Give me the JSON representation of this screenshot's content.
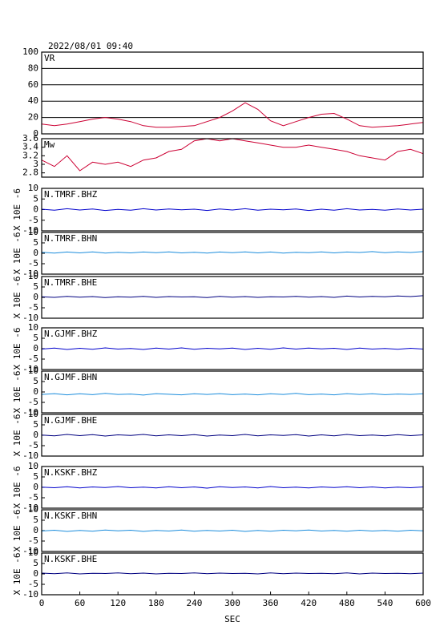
{
  "chart_data": [
    {
      "type": "line",
      "title": "2022/08/01 09:40",
      "ylim": [
        0,
        100
      ],
      "yticks": [
        0,
        20,
        40,
        60,
        80,
        100
      ],
      "grid": true,
      "x": [
        0,
        20,
        40,
        60,
        80,
        100,
        120,
        140,
        160,
        180,
        200,
        220,
        240,
        260,
        280,
        300,
        320,
        340,
        360,
        380,
        400,
        420,
        440,
        460,
        480,
        500,
        520,
        540,
        560,
        580,
        600
      ],
      "series": [
        {
          "name": "VR",
          "color": "#cc0033",
          "values": [
            12,
            10,
            12,
            15,
            18,
            20,
            18,
            15,
            10,
            8,
            8,
            9,
            10,
            15,
            20,
            28,
            38,
            30,
            16,
            10,
            15,
            20,
            24,
            25,
            18,
            10,
            8,
            9,
            10,
            12,
            14
          ]
        }
      ]
    },
    {
      "type": "line",
      "ylim": [
        2.7,
        3.6
      ],
      "yticks": [
        2.8,
        3,
        3.2,
        3.4,
        3.6
      ],
      "x": [
        0,
        20,
        40,
        60,
        80,
        100,
        120,
        140,
        160,
        180,
        200,
        220,
        240,
        260,
        280,
        300,
        320,
        340,
        360,
        380,
        400,
        420,
        440,
        460,
        480,
        500,
        520,
        540,
        560,
        580,
        600
      ],
      "series": [
        {
          "name": "Mw",
          "color": "#cc0033",
          "values": [
            3.1,
            2.95,
            3.2,
            2.85,
            3.05,
            3.0,
            3.05,
            2.95,
            3.1,
            3.15,
            3.3,
            3.35,
            3.55,
            3.6,
            3.55,
            3.6,
            3.55,
            3.5,
            3.45,
            3.4,
            3.4,
            3.45,
            3.4,
            3.35,
            3.3,
            3.2,
            3.15,
            3.1,
            3.3,
            3.35,
            3.25
          ]
        }
      ]
    },
    {
      "type": "line",
      "ylim": [
        -10,
        10
      ],
      "yticks": [
        -10,
        -5,
        0,
        5,
        10
      ],
      "ylabel": "X 10E -6",
      "x": [
        0,
        20,
        40,
        60,
        80,
        100,
        120,
        140,
        160,
        180,
        200,
        220,
        240,
        260,
        280,
        300,
        320,
        340,
        360,
        380,
        400,
        420,
        440,
        460,
        480,
        500,
        520,
        540,
        560,
        580,
        600
      ],
      "series": [
        {
          "name": "N.TMRF.BHZ",
          "color": "#0000cc",
          "values": [
            0.2,
            -0.3,
            0.4,
            -0.2,
            0.3,
            -0.4,
            0.1,
            -0.3,
            0.4,
            -0.2,
            0.3,
            -0.1,
            0.2,
            -0.4,
            0.3,
            -0.2,
            0.4,
            -0.3,
            0.2,
            -0.1,
            0.3,
            -0.4,
            0.2,
            -0.3,
            0.4,
            -0.2,
            0.1,
            -0.3,
            0.3,
            -0.2,
            0.2
          ]
        }
      ]
    },
    {
      "type": "line",
      "ylim": [
        -10,
        10
      ],
      "yticks": [
        -10,
        -5,
        0,
        5,
        10
      ],
      "ylabel": "X 10E -6",
      "x": [
        0,
        20,
        40,
        60,
        80,
        100,
        120,
        140,
        160,
        180,
        200,
        220,
        240,
        260,
        280,
        300,
        320,
        340,
        360,
        380,
        400,
        420,
        440,
        460,
        480,
        500,
        520,
        540,
        560,
        580,
        600
      ],
      "series": [
        {
          "name": "N.TMRF.BHN",
          "color": "#1a8cdc",
          "values": [
            0.5,
            0.1,
            0.6,
            0.2,
            0.7,
            0.1,
            0.5,
            0.2,
            0.6,
            0.3,
            0.7,
            0.2,
            0.5,
            0.1,
            0.6,
            0.3,
            0.7,
            0.2,
            0.6,
            0.1,
            0.5,
            0.3,
            0.7,
            0.2,
            0.6,
            0.4,
            0.8,
            0.3,
            0.7,
            0.4,
            0.8
          ]
        }
      ]
    },
    {
      "type": "line",
      "ylim": [
        -10,
        10
      ],
      "yticks": [
        -10,
        -5,
        0,
        5,
        10
      ],
      "ylabel": "X 10E -6",
      "x": [
        0,
        20,
        40,
        60,
        80,
        100,
        120,
        140,
        160,
        180,
        200,
        220,
        240,
        260,
        280,
        300,
        320,
        340,
        360,
        380,
        400,
        420,
        440,
        460,
        480,
        500,
        520,
        540,
        560,
        580,
        600
      ],
      "series": [
        {
          "name": "N.TMRF.BHE",
          "color": "#000080",
          "values": [
            0.3,
            0.0,
            0.5,
            0.1,
            0.4,
            -0.1,
            0.3,
            0.1,
            0.5,
            0.0,
            0.4,
            0.2,
            0.3,
            -0.1,
            0.5,
            0.1,
            0.4,
            0.0,
            0.3,
            0.2,
            0.5,
            0.1,
            0.4,
            0.0,
            0.6,
            0.2,
            0.5,
            0.3,
            0.7,
            0.4,
            0.8
          ]
        }
      ]
    },
    {
      "type": "line",
      "ylim": [
        -10,
        10
      ],
      "yticks": [
        -10,
        -5,
        0,
        5,
        10
      ],
      "ylabel": "X 10E -6",
      "x": [
        0,
        20,
        40,
        60,
        80,
        100,
        120,
        140,
        160,
        180,
        200,
        220,
        240,
        260,
        280,
        300,
        320,
        340,
        360,
        380,
        400,
        420,
        440,
        460,
        480,
        500,
        520,
        540,
        560,
        580,
        600
      ],
      "series": [
        {
          "name": "N.GJMF.BHZ",
          "color": "#0000cc",
          "values": [
            -0.2,
            0.3,
            -0.4,
            0.2,
            -0.3,
            0.4,
            -0.2,
            0.1,
            -0.4,
            0.3,
            -0.2,
            0.4,
            -0.3,
            0.2,
            -0.1,
            0.3,
            -0.4,
            0.2,
            -0.3,
            0.4,
            -0.2,
            0.3,
            -0.1,
            0.2,
            -0.4,
            0.3,
            -0.2,
            0.1,
            -0.3,
            0.2,
            -0.2
          ]
        }
      ]
    },
    {
      "type": "line",
      "ylim": [
        -10,
        10
      ],
      "yticks": [
        -10,
        -5,
        0,
        5,
        10
      ],
      "ylabel": "X 10E -6",
      "x": [
        0,
        20,
        40,
        60,
        80,
        100,
        120,
        140,
        160,
        180,
        200,
        220,
        240,
        260,
        280,
        300,
        320,
        340,
        360,
        380,
        400,
        420,
        440,
        460,
        480,
        500,
        520,
        540,
        560,
        580,
        600
      ],
      "series": [
        {
          "name": "N.GJMF.BHN",
          "color": "#1a8cdc",
          "values": [
            -1.2,
            -0.8,
            -1.4,
            -0.9,
            -1.3,
            -0.7,
            -1.2,
            -1.0,
            -1.5,
            -0.8,
            -1.1,
            -1.4,
            -0.9,
            -1.2,
            -0.8,
            -1.3,
            -1.0,
            -1.4,
            -0.9,
            -1.2,
            -0.7,
            -1.3,
            -1.0,
            -1.4,
            -0.8,
            -1.2,
            -0.9,
            -1.3,
            -1.0,
            -1.2,
            -0.9
          ]
        }
      ]
    },
    {
      "type": "line",
      "ylim": [
        -10,
        10
      ],
      "yticks": [
        -10,
        -5,
        0,
        5,
        10
      ],
      "ylabel": "X 10E -6",
      "x": [
        0,
        20,
        40,
        60,
        80,
        100,
        120,
        140,
        160,
        180,
        200,
        220,
        240,
        260,
        280,
        300,
        320,
        340,
        360,
        380,
        400,
        420,
        440,
        460,
        480,
        500,
        520,
        540,
        560,
        580,
        600
      ],
      "series": [
        {
          "name": "N.GJMF.BHE",
          "color": "#000080",
          "values": [
            0.1,
            -0.3,
            0.4,
            -0.2,
            0.3,
            -0.4,
            0.2,
            -0.1,
            0.4,
            -0.3,
            0.2,
            -0.2,
            0.3,
            -0.4,
            0.1,
            -0.2,
            0.4,
            -0.3,
            0.2,
            -0.1,
            0.3,
            -0.4,
            0.2,
            -0.3,
            0.4,
            -0.2,
            0.1,
            -0.3,
            0.3,
            -0.2,
            0.2
          ]
        }
      ]
    },
    {
      "type": "line",
      "ylim": [
        -10,
        10
      ],
      "yticks": [
        -10,
        -5,
        0,
        5,
        10
      ],
      "ylabel": "X 10E -6",
      "x": [
        0,
        20,
        40,
        60,
        80,
        100,
        120,
        140,
        160,
        180,
        200,
        220,
        240,
        260,
        280,
        300,
        320,
        340,
        360,
        380,
        400,
        420,
        440,
        460,
        480,
        500,
        520,
        540,
        560,
        580,
        600
      ],
      "series": [
        {
          "name": "N.KSKF.BHZ",
          "color": "#0000cc",
          "values": [
            0.1,
            -0.2,
            0.3,
            -0.3,
            0.2,
            -0.1,
            0.4,
            -0.2,
            0.1,
            -0.3,
            0.3,
            -0.2,
            0.2,
            -0.4,
            0.3,
            -0.1,
            0.2,
            -0.3,
            0.4,
            -0.2,
            0.1,
            -0.3,
            0.2,
            -0.1,
            0.3,
            -0.2,
            0.2,
            -0.3,
            0.1,
            -0.2,
            0.2
          ]
        }
      ]
    },
    {
      "type": "line",
      "ylim": [
        -10,
        10
      ],
      "yticks": [
        -10,
        -5,
        0,
        5,
        10
      ],
      "ylabel": "X 10E -6",
      "x": [
        0,
        20,
        40,
        60,
        80,
        100,
        120,
        140,
        160,
        180,
        200,
        220,
        240,
        260,
        280,
        300,
        320,
        340,
        360,
        380,
        400,
        420,
        440,
        460,
        480,
        500,
        520,
        540,
        560,
        580,
        600
      ],
      "series": [
        {
          "name": "N.KSKF.BHN",
          "color": "#1a8cdc",
          "values": [
            -0.2,
            0.2,
            -0.4,
            0.1,
            -0.3,
            0.3,
            -0.1,
            0.2,
            -0.4,
            0.1,
            -0.2,
            0.3,
            -0.3,
            0.1,
            -0.2,
            0.2,
            -0.4,
            0.1,
            -0.3,
            0.2,
            -0.1,
            0.3,
            -0.2,
            0.1,
            -0.3,
            0.2,
            -0.2,
            0.1,
            -0.3,
            0.2,
            -0.1
          ]
        }
      ]
    },
    {
      "type": "line",
      "ylim": [
        -10,
        10
      ],
      "yticks": [
        -10,
        -5,
        0,
        5,
        10
      ],
      "ylabel": "X 10E -6",
      "xlabel": "SEC",
      "xticks": [
        0,
        60,
        120,
        180,
        240,
        300,
        360,
        420,
        480,
        540,
        600
      ],
      "x": [
        0,
        20,
        40,
        60,
        80,
        100,
        120,
        140,
        160,
        180,
        200,
        220,
        240,
        260,
        280,
        300,
        320,
        340,
        360,
        380,
        400,
        420,
        440,
        460,
        480,
        500,
        520,
        540,
        560,
        580,
        600
      ],
      "series": [
        {
          "name": "N.KSKF.BHE",
          "color": "#000080",
          "values": [
            0.4,
            0.1,
            0.5,
            0.0,
            0.3,
            0.2,
            0.5,
            0.1,
            0.4,
            0.0,
            0.3,
            0.2,
            0.5,
            0.1,
            0.4,
            0.2,
            0.3,
            0.0,
            0.5,
            0.1,
            0.4,
            0.2,
            0.3,
            0.1,
            0.5,
            0.0,
            0.4,
            0.2,
            0.3,
            0.1,
            0.4
          ]
        }
      ]
    }
  ]
}
